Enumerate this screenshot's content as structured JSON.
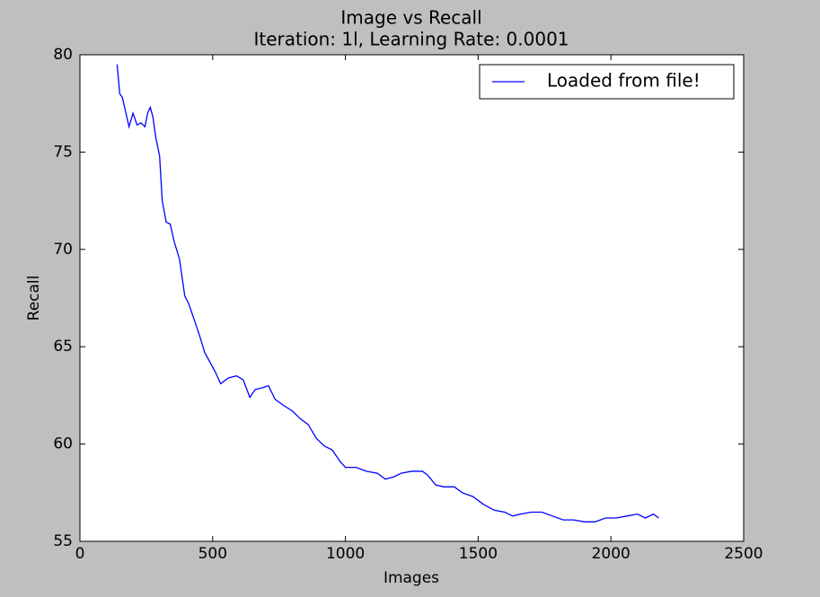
{
  "chart_data": {
    "type": "line",
    "title": "Image vs Recall",
    "subtitle": "Iteration: 1l, Learning Rate: 0.0001",
    "x_label": "Images",
    "y_label": "Recall",
    "x": [
      140,
      150,
      160,
      175,
      185,
      200,
      215,
      230,
      245,
      255,
      265,
      275,
      285,
      300,
      310,
      325,
      340,
      355,
      375,
      395,
      410,
      430,
      450,
      470,
      490,
      510,
      530,
      560,
      590,
      615,
      640,
      660,
      690,
      710,
      735,
      765,
      800,
      830,
      860,
      890,
      920,
      950,
      980,
      1000,
      1040,
      1080,
      1120,
      1150,
      1180,
      1210,
      1250,
      1290,
      1310,
      1340,
      1370,
      1410,
      1440,
      1480,
      1520,
      1560,
      1600,
      1630,
      1660,
      1700,
      1740,
      1780,
      1820,
      1860,
      1900,
      1940,
      1980,
      2020,
      2060,
      2100,
      2130,
      2160,
      2180
    ],
    "series": [
      {
        "name": "Loaded from file!",
        "color": "#0000ff",
        "values": [
          79.5,
          78.0,
          77.8,
          76.9,
          76.3,
          77.0,
          76.4,
          76.5,
          76.3,
          77.0,
          77.3,
          76.8,
          75.8,
          74.8,
          72.5,
          71.4,
          71.3,
          70.4,
          69.5,
          67.6,
          67.2,
          66.4,
          65.6,
          64.7,
          64.2,
          63.7,
          63.1,
          63.4,
          63.5,
          63.3,
          62.4,
          62.8,
          62.9,
          63.0,
          62.3,
          62.0,
          61.7,
          61.3,
          61.0,
          60.3,
          59.9,
          59.7,
          59.1,
          58.8,
          58.8,
          58.6,
          58.5,
          58.2,
          58.3,
          58.5,
          58.6,
          58.6,
          58.4,
          57.9,
          57.8,
          57.8,
          57.5,
          57.3,
          56.9,
          56.6,
          56.5,
          56.3,
          56.4,
          56.5,
          56.5,
          56.3,
          56.1,
          56.1,
          56.0,
          56.0,
          56.2,
          56.2,
          56.3,
          56.4,
          56.2,
          56.4,
          56.2
        ]
      }
    ],
    "xlim": [
      0,
      2500
    ],
    "xticks": [
      0,
      500,
      1000,
      1500,
      2000,
      2500
    ],
    "ylim": [
      55,
      80
    ],
    "yticks": [
      55,
      60,
      65,
      70,
      75,
      80
    ],
    "legend": "upper-right",
    "grid": false
  }
}
